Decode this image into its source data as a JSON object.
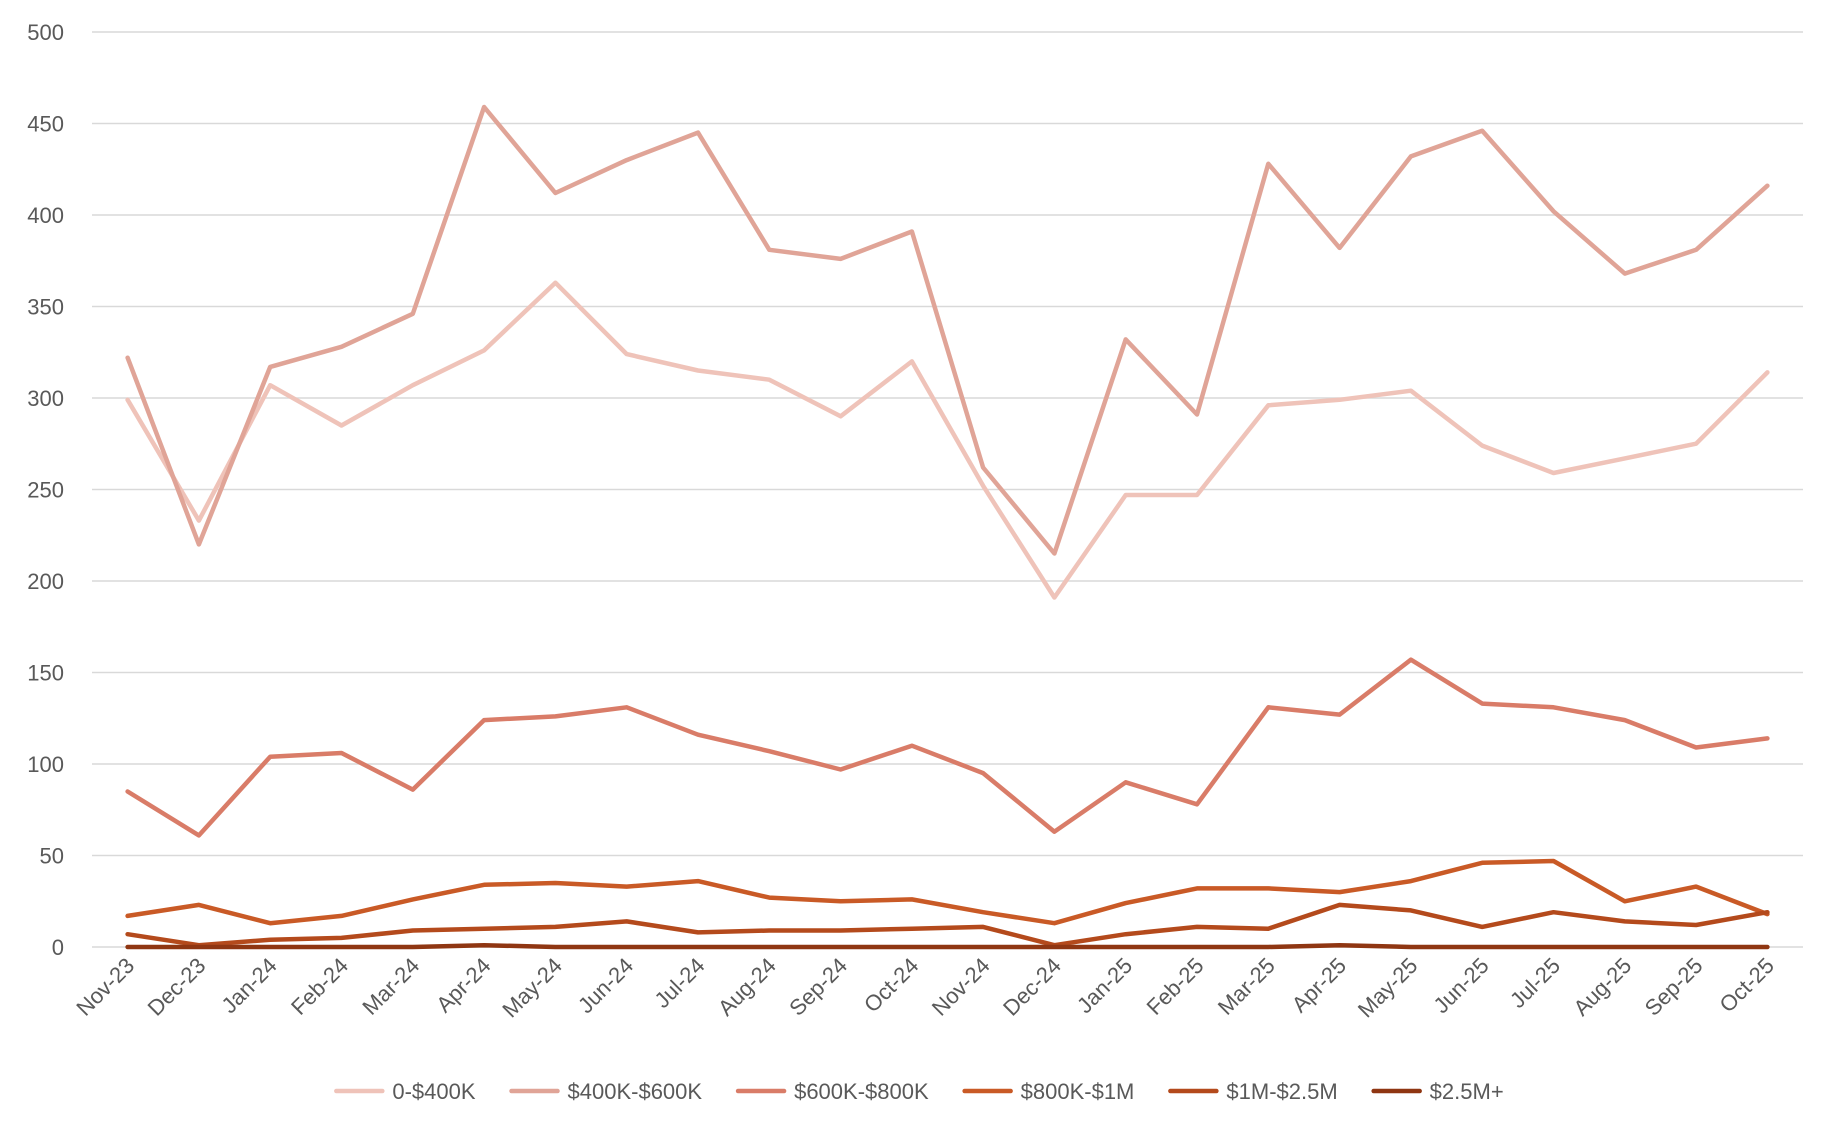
{
  "chart_data": {
    "type": "line",
    "title": "",
    "xlabel": "",
    "ylabel": "",
    "ylim": [
      0,
      500
    ],
    "yticks": [
      0,
      50,
      100,
      150,
      200,
      250,
      300,
      350,
      400,
      450,
      500
    ],
    "grid": true,
    "legend_position": "bottom",
    "categories": [
      "Nov-23",
      "Dec-23",
      "Jan-24",
      "Feb-24",
      "Mar-24",
      "Apr-24",
      "May-24",
      "Jun-24",
      "Jul-24",
      "Aug-24",
      "Sep-24",
      "Oct-24",
      "Nov-24",
      "Dec-24",
      "Jan-25",
      "Feb-25",
      "Mar-25",
      "Apr-25",
      "May-25",
      "Jun-25",
      "Jul-25",
      "Aug-25",
      "Sep-25",
      "Oct-25"
    ],
    "series": [
      {
        "name": "0-$400K",
        "color": "#efc3b9",
        "values": [
          299,
          233,
          307,
          285,
          307,
          326,
          363,
          324,
          315,
          310,
          290,
          320,
          252,
          191,
          247,
          247,
          296,
          299,
          304,
          274,
          259,
          267,
          275,
          314
        ]
      },
      {
        "name": "$400K-$600K",
        "color": "#e0a497",
        "values": [
          322,
          220,
          317,
          328,
          346,
          459,
          412,
          430,
          445,
          381,
          376,
          391,
          262,
          215,
          332,
          291,
          428,
          382,
          432,
          446,
          402,
          368,
          381,
          416
        ]
      },
      {
        "name": "$600K-$800K",
        "color": "#d97c68",
        "values": [
          85,
          61,
          104,
          106,
          86,
          124,
          126,
          131,
          116,
          107,
          97,
          110,
          95,
          63,
          90,
          78,
          131,
          127,
          157,
          133,
          131,
          124,
          109,
          114
        ]
      },
      {
        "name": "$800K-$1M",
        "color": "#c95a26",
        "values": [
          17,
          23,
          13,
          17,
          26,
          34,
          35,
          33,
          36,
          27,
          25,
          26,
          19,
          13,
          24,
          32,
          32,
          30,
          36,
          46,
          47,
          25,
          33,
          18
        ]
      },
      {
        "name": "$1M-$2.5M",
        "color": "#b44a1c",
        "values": [
          7,
          1,
          4,
          5,
          9,
          10,
          11,
          14,
          8,
          9,
          9,
          10,
          11,
          1,
          7,
          11,
          10,
          23,
          20,
          11,
          19,
          14,
          12,
          19
        ]
      },
      {
        "name": "$2.5M+",
        "color": "#8f3612",
        "values": [
          0,
          0,
          0,
          0,
          0,
          1,
          0,
          0,
          0,
          0,
          0,
          0,
          0,
          0,
          0,
          0,
          0,
          1,
          0,
          0,
          0,
          0,
          0,
          0
        ]
      }
    ]
  }
}
